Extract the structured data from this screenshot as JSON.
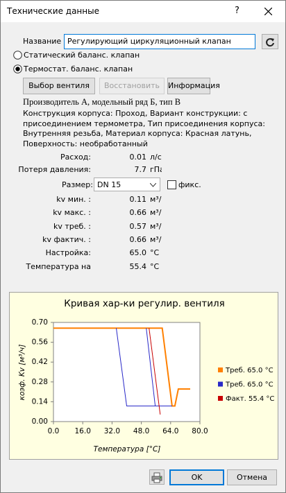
{
  "window": {
    "title": "Технические данные",
    "help": "?"
  },
  "form": {
    "name_label": "Название",
    "name_value": "Регулирующий циркуляционный клапан",
    "options": [
      {
        "label": "Статический баланс. клапан",
        "checked": false
      },
      {
        "label": "Термостат. баланс. клапан",
        "checked": true
      }
    ],
    "buttons": [
      {
        "label": "Выбор вентиля",
        "enabled": true
      },
      {
        "label": "Восстановить",
        "enabled": false
      },
      {
        "label": "Информация",
        "enabled": true
      }
    ],
    "manufacturer": "Производитель A, модельный ряд Б, тип В",
    "description": "Конструкция корпуса: Проход, Вариант конструкции: с присоединением термометра, Тип присоединения корпуса: Внутренняя резьба, Материал корпуса: Красная латунь, Поверхность: необработанный",
    "rows": [
      {
        "label": "Расход:",
        "value": "0.01",
        "unit": "л/с"
      },
      {
        "label": "Потеря давления:",
        "value": "7.7",
        "unit": "гПа"
      }
    ],
    "size": {
      "label": "Размер:",
      "value": "DN 15",
      "fix_label": "фикс.",
      "fixed": false
    },
    "kv_rows": [
      {
        "label": "kv мин. :",
        "value": "0.11",
        "unit": "м³/ч"
      },
      {
        "label": "kv макс. :",
        "value": "0.66",
        "unit": "м³/ч"
      },
      {
        "label": "kv треб. :",
        "value": "0.57",
        "unit": "м³/ч"
      },
      {
        "label": "kv фактич. :",
        "value": "0.66",
        "unit": "м³/ч"
      },
      {
        "label": "Настройка:",
        "value": "65.0",
        "unit": "°C"
      },
      {
        "label": "Температура на",
        "value": "55.4",
        "unit": "°C"
      }
    ]
  },
  "chart_data": {
    "type": "line",
    "title": "Кривая хар-ки регулир. вентиля",
    "x_label": "Температура [°C]",
    "y_label": "коэф. Kv [м³/ч]",
    "xlim": [
      0,
      80
    ],
    "ylim": [
      0,
      0.7
    ],
    "xticks": [
      {
        "value": 0,
        "label": "0.0"
      },
      {
        "value": 16,
        "label": "16.0"
      },
      {
        "value": 32,
        "label": "32.0"
      },
      {
        "value": 48,
        "label": "48.0"
      },
      {
        "value": 64,
        "label": "64.0"
      },
      {
        "value": 80,
        "label": "80.0"
      }
    ],
    "yticks": [
      {
        "value": 0,
        "label": "0.00"
      },
      0.14,
      0.28,
      0.42,
      0.56,
      {
        "value": 0.7,
        "label": "0.70"
      }
    ],
    "grid": false,
    "series": [
      {
        "name": "Треб. 65.0 °C",
        "color": "#ff8000",
        "x": [
          0,
          59.4,
          64.8,
          66.3,
          68.2,
          74.7
        ],
        "values": [
          0.66,
          0.66,
          0.11,
          0.11,
          0.23,
          0.23
        ]
      },
      {
        "name": "Треб. 65.0 °C",
        "color": "#2828c8",
        "x": [
          34.3,
          40,
          64.8,
          null,
          50.7,
          55.6
        ],
        "values": [
          0.66,
          0.11,
          0.11,
          null,
          0.66,
          0.11
        ]
      },
      {
        "name": "Факт. 55.4 °C",
        "color": "#c80000",
        "x": [
          52.2,
          58.3
        ],
        "values": [
          0.66,
          0.05
        ]
      }
    ]
  },
  "footer": {
    "ok": "OK",
    "cancel": "Отмена"
  }
}
